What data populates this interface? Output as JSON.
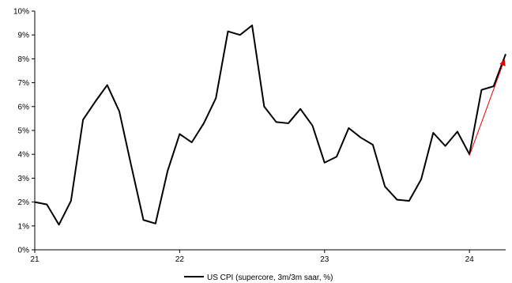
{
  "chart_data": {
    "type": "line",
    "title": "",
    "xlabel": "",
    "ylabel": "",
    "ylim": [
      0,
      10
    ],
    "yticks": [
      "0%",
      "1%",
      "2%",
      "3%",
      "4%",
      "5%",
      "6%",
      "7%",
      "8%",
      "9%",
      "10%"
    ],
    "xlim": [
      2021.0,
      2024.25
    ],
    "xticks": [
      {
        "value": 2021,
        "label": "21"
      },
      {
        "value": 2022,
        "label": "22"
      },
      {
        "value": 2023,
        "label": "23"
      },
      {
        "value": 2024,
        "label": "24"
      }
    ],
    "grid": false,
    "legend_position": "bottom-center",
    "series": [
      {
        "name": "US CPI (supercore, 3m/3m saar, %)",
        "color": "#000000",
        "x": [
          2021.0,
          2021.0833,
          2021.1667,
          2021.25,
          2021.3333,
          2021.4167,
          2021.5,
          2021.5833,
          2021.6667,
          2021.75,
          2021.8333,
          2021.9167,
          2022.0,
          2022.0833,
          2022.1667,
          2022.25,
          2022.3333,
          2022.4167,
          2022.5,
          2022.5833,
          2022.6667,
          2022.75,
          2022.8333,
          2022.9167,
          2023.0,
          2023.0833,
          2023.1667,
          2023.25,
          2023.3333,
          2023.4167,
          2023.5,
          2023.5833,
          2023.6667,
          2023.75,
          2023.8333,
          2023.9167,
          2024.0,
          2024.0833,
          2024.1667,
          2024.25
        ],
        "values": [
          2.0,
          1.9,
          1.05,
          2.05,
          5.45,
          6.2,
          6.9,
          5.8,
          3.5,
          1.25,
          1.1,
          3.3,
          4.85,
          4.5,
          5.3,
          6.35,
          9.15,
          9.0,
          9.4,
          6.0,
          5.35,
          5.3,
          5.9,
          5.2,
          3.65,
          3.9,
          5.1,
          4.7,
          4.4,
          2.65,
          2.1,
          2.05,
          2.95,
          4.9,
          4.35,
          4.95,
          4.0,
          6.7,
          6.85,
          8.2
        ]
      }
    ],
    "annotations": [
      {
        "type": "arrow",
        "color": "#e00000",
        "from": {
          "x": 2024.0,
          "y": 3.95
        },
        "to": {
          "x": 2024.25,
          "y": 8.05
        }
      }
    ]
  }
}
